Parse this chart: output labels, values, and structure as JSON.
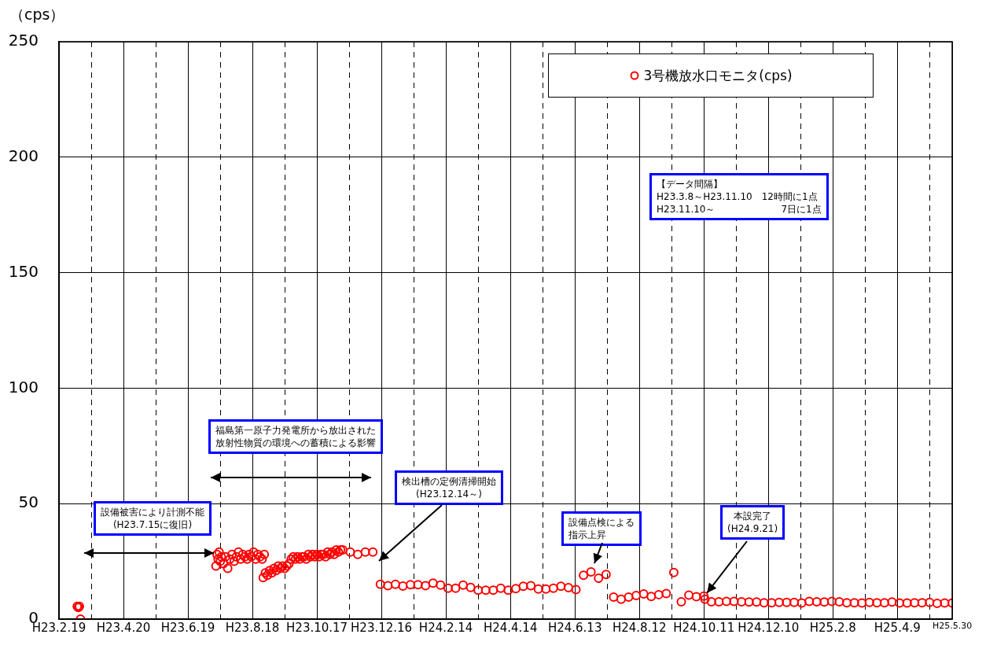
{
  "chart_data": {
    "type": "scatter",
    "ylabel": "（cps）",
    "legend": "top right",
    "marker": "circle",
    "grid": true,
    "ylim": [
      0,
      250
    ],
    "yticks": [
      0,
      50,
      100,
      150,
      200,
      250
    ],
    "xlim": [
      "2011-02-19",
      "2013-05-30"
    ],
    "xticks": [
      {
        "value": "2011-02-19",
        "label": "H23.2.19"
      },
      {
        "value": "2011-03-21",
        "label": null
      },
      {
        "value": "2011-04-20",
        "label": "H23.4.20"
      },
      {
        "value": "2011-05-20",
        "label": null
      },
      {
        "value": "2011-06-19",
        "label": "H23.6.19"
      },
      {
        "value": "2011-07-19",
        "label": null
      },
      {
        "value": "2011-08-18",
        "label": "H23.8.18"
      },
      {
        "value": "2011-09-17",
        "label": null
      },
      {
        "value": "2011-10-17",
        "label": "H23.10.17"
      },
      {
        "value": "2011-11-16",
        "label": null
      },
      {
        "value": "2011-12-16",
        "label": "H23.12.16"
      },
      {
        "value": "2012-01-15",
        "label": null
      },
      {
        "value": "2012-02-14",
        "label": "H24.2.14"
      },
      {
        "value": "2012-03-15",
        "label": null
      },
      {
        "value": "2012-04-14",
        "label": "H24.4.14"
      },
      {
        "value": "2012-05-14",
        "label": null
      },
      {
        "value": "2012-06-13",
        "label": "H24.6.13"
      },
      {
        "value": "2012-07-13",
        "label": null
      },
      {
        "value": "2012-08-12",
        "label": "H24.8.12"
      },
      {
        "value": "2012-09-11",
        "label": null
      },
      {
        "value": "2012-10-11",
        "label": "H24.10.11"
      },
      {
        "value": "2012-11-10",
        "label": null
      },
      {
        "value": "2012-12-10",
        "label": "H24.12.10"
      },
      {
        "value": "2013-01-09",
        "label": null
      },
      {
        "value": "2013-02-08",
        "label": "H25.2.8"
      },
      {
        "value": "2013-03-10",
        "label": null
      },
      {
        "value": "2013-04-09",
        "label": "H25.4.9"
      },
      {
        "value": "2013-05-09",
        "label": null
      },
      {
        "value": "2013-05-30",
        "label": "H25.5.30"
      }
    ],
    "annotations": [
      "【データ間隔】\nH23.3.8～H23.11.10　12時間に1点\nH23.11.10～　　　　　　　7日に1点",
      "設備被害により計測不能\n(H23.7.15に復旧)",
      "福島第一原子力発電所から放出された放射性物質の環境への蓄積による影響",
      "検出槽の定例清掃開始\n(H23.12.14～)",
      "設備点検による指示上昇",
      {
        "text": "本設完了\n(H24.9.21)",
        "x": "2012-10-11",
        "y": 10
      }
    ],
    "series": [
      {
        "name": "3号機放水口モニタ(cps)",
        "color": "#ff0000",
        "x": [
          "2011-03-08",
          "2011-03-09",
          "2011-03-10",
          "2011-03-11",
          "2011-07-15",
          "2011-07-16",
          "2011-07-17",
          "2011-07-18",
          "2011-07-19",
          "2011-07-20",
          "2011-07-22",
          "2011-07-24",
          "2011-07-26",
          "2011-07-28",
          "2011-07-30",
          "2011-08-01",
          "2011-08-03",
          "2011-08-05",
          "2011-08-07",
          "2011-08-09",
          "2011-08-11",
          "2011-08-13",
          "2011-08-15",
          "2011-08-17",
          "2011-08-19",
          "2011-08-21",
          "2011-08-23",
          "2011-08-25",
          "2011-08-27",
          "2011-08-29",
          "2011-08-28",
          "2011-08-30",
          "2011-09-01",
          "2011-09-03",
          "2011-09-05",
          "2011-09-07",
          "2011-09-09",
          "2011-09-11",
          "2011-09-13",
          "2011-09-15",
          "2011-09-17",
          "2011-09-19",
          "2011-09-21",
          "2011-09-23",
          "2011-09-25",
          "2011-09-27",
          "2011-09-29",
          "2011-10-01",
          "2011-10-03",
          "2011-10-05",
          "2011-10-07",
          "2011-10-09",
          "2011-10-11",
          "2011-10-13",
          "2011-10-15",
          "2011-10-17",
          "2011-10-19",
          "2011-10-21",
          "2011-10-23",
          "2011-10-25",
          "2011-10-27",
          "2011-10-29",
          "2011-10-31",
          "2011-11-02",
          "2011-11-04",
          "2011-11-06",
          "2011-11-08",
          "2011-11-10",
          "2011-11-17",
          "2011-11-24",
          "2011-12-01",
          "2011-12-08",
          "2011-12-15",
          "2011-12-22",
          "2011-12-29",
          "2012-01-05",
          "2012-01-12",
          "2012-01-19",
          "2012-01-26",
          "2012-02-02",
          "2012-02-09",
          "2012-02-16",
          "2012-02-23",
          "2012-03-01",
          "2012-03-08",
          "2012-03-15",
          "2012-03-22",
          "2012-03-29",
          "2012-04-05",
          "2012-04-12",
          "2012-04-19",
          "2012-04-26",
          "2012-05-03",
          "2012-05-10",
          "2012-05-17",
          "2012-05-24",
          "2012-05-31",
          "2012-06-07",
          "2012-06-14",
          "2012-06-21",
          "2012-06-28",
          "2012-07-05",
          "2012-07-12",
          "2012-07-19",
          "2012-07-26",
          "2012-08-02",
          "2012-08-09",
          "2012-08-16",
          "2012-08-23",
          "2012-08-30",
          "2012-09-06",
          "2012-09-13",
          "2012-09-20",
          "2012-09-27",
          "2012-10-04",
          "2012-10-11",
          "2012-10-12",
          "2012-10-18",
          "2012-10-25",
          "2012-11-01",
          "2012-11-08",
          "2012-11-15",
          "2012-11-22",
          "2012-11-29",
          "2012-12-06",
          "2012-12-13",
          "2012-12-20",
          "2012-12-27",
          "2013-01-03",
          "2013-01-10",
          "2013-01-17",
          "2013-01-24",
          "2013-01-31",
          "2013-02-07",
          "2013-02-14",
          "2013-02-21",
          "2013-02-28",
          "2013-03-07",
          "2013-03-14",
          "2013-03-21",
          "2013-03-28",
          "2013-04-04",
          "2013-04-11",
          "2013-04-18",
          "2013-04-25",
          "2013-05-02",
          "2013-05-09",
          "2013-05-16",
          "2013-05-23",
          "2013-05-30"
        ],
        "values": [
          5.5,
          5,
          5.5,
          0,
          23,
          28,
          26,
          29,
          25,
          27,
          24,
          27,
          22,
          26,
          28,
          25,
          27,
          29,
          26,
          28,
          27,
          26,
          28,
          27,
          29,
          26,
          28,
          27,
          26,
          28,
          18,
          20,
          19,
          21,
          20,
          22,
          21,
          23,
          22,
          23,
          22,
          23,
          24,
          26,
          27,
          26,
          27,
          26,
          27,
          27,
          26,
          28,
          27,
          28,
          27,
          28,
          27,
          28,
          28,
          27,
          29,
          28,
          29,
          28,
          30,
          29,
          30,
          30,
          29,
          28,
          29,
          29,
          15.1,
          14.5,
          15.1,
          14.3,
          14.9,
          14.9,
          14.5,
          15.6,
          14.7,
          13.4,
          13.4,
          14.7,
          13.7,
          12.5,
          12.5,
          12.5,
          13.4,
          12.5,
          13.2,
          14.2,
          14.5,
          13,
          13,
          13.4,
          14.2,
          13.6,
          12.8,
          19,
          20.4,
          17.7,
          19.3,
          9.5,
          8.6,
          9.5,
          10.2,
          10.9,
          9.8,
          10.6,
          11.1,
          20.2,
          7.5,
          10.4,
          9.7,
          10,
          8.6,
          7.5,
          7.5,
          7.7,
          7.7,
          7.5,
          7.4,
          7.4,
          7.1,
          7.1,
          7.2,
          7.2,
          7.2,
          7,
          7.7,
          7.5,
          7.4,
          7.7,
          7.5,
          7.1,
          7.1,
          7,
          7.2,
          7.1,
          7.1,
          7.4,
          7,
          7,
          7.1,
          7.1,
          7.2,
          6.8,
          7,
          7
        ]
      }
    ]
  }
}
